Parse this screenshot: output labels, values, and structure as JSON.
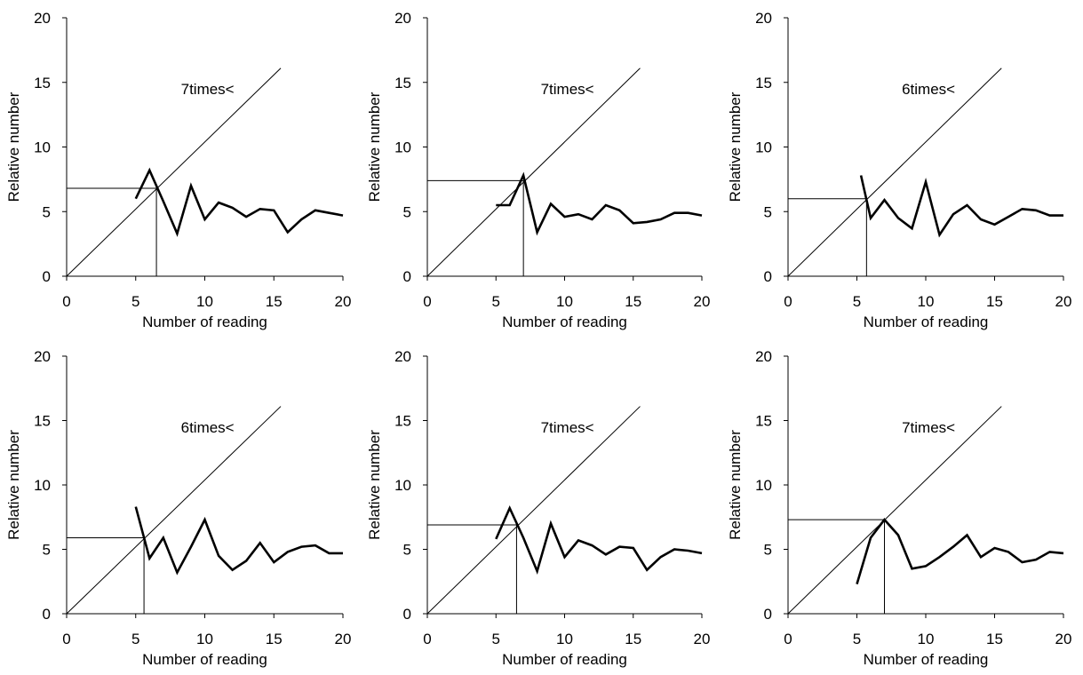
{
  "chart_data": [
    {
      "type": "line",
      "annotation": "7times<",
      "xlabel": "Number of reading",
      "ylabel": "Relative number",
      "xlim": [
        0,
        20
      ],
      "ylim": [
        0,
        20
      ],
      "x_ticks": [
        "0",
        "5",
        "10",
        "15",
        "20"
      ],
      "y_ticks": [
        "0",
        "5",
        "10",
        "15",
        "20"
      ],
      "diagonal_line": {
        "from": [
          0,
          0
        ],
        "to": [
          15.5,
          16.1
        ]
      },
      "intersection": [
        6.5,
        6.8
      ],
      "series": [
        {
          "x": [
            5,
            6,
            7,
            8,
            9,
            10,
            11,
            12,
            13,
            14,
            15,
            16,
            17,
            18,
            19,
            20
          ],
          "values": [
            6.0,
            8.2,
            5.8,
            3.3,
            7.0,
            4.4,
            5.7,
            5.3,
            4.6,
            5.2,
            5.1,
            3.4,
            4.4,
            5.1,
            4.9,
            4.7
          ]
        }
      ]
    },
    {
      "type": "line",
      "annotation": "7times<",
      "xlabel": "Number of reading",
      "ylabel": "Relative number",
      "xlim": [
        0,
        20
      ],
      "ylim": [
        0,
        20
      ],
      "x_ticks": [
        "0",
        "5",
        "10",
        "15",
        "20"
      ],
      "y_ticks": [
        "0",
        "5",
        "10",
        "15",
        "20"
      ],
      "diagonal_line": {
        "from": [
          0,
          0
        ],
        "to": [
          15.5,
          16.1
        ]
      },
      "intersection": [
        7,
        7.4
      ],
      "series": [
        {
          "x": [
            5,
            6,
            7,
            8,
            9,
            10,
            11,
            12,
            13,
            14,
            15,
            16,
            17,
            18,
            19,
            20
          ],
          "values": [
            5.5,
            5.5,
            7.8,
            3.4,
            5.6,
            4.6,
            4.8,
            4.4,
            5.5,
            5.1,
            4.1,
            4.2,
            4.4,
            4.9,
            4.9,
            4.7
          ]
        }
      ]
    },
    {
      "type": "line",
      "annotation": "6times<",
      "xlabel": "Number of reading",
      "ylabel": "Relative number",
      "xlim": [
        0,
        20
      ],
      "ylim": [
        0,
        20
      ],
      "x_ticks": [
        "0",
        "5",
        "10",
        "15",
        "20"
      ],
      "y_ticks": [
        "0",
        "5",
        "10",
        "15",
        "20"
      ],
      "diagonal_line": {
        "from": [
          0,
          0
        ],
        "to": [
          15.5,
          16.1
        ]
      },
      "intersection": [
        5.7,
        6.0
      ],
      "series": [
        {
          "x": [
            5.3,
            6,
            7,
            8,
            9,
            10,
            11,
            12,
            13,
            14,
            15,
            16,
            17,
            18,
            19,
            20
          ],
          "values": [
            7.8,
            4.5,
            5.9,
            4.5,
            3.7,
            7.3,
            3.2,
            4.8,
            5.5,
            4.4,
            4.0,
            4.6,
            5.2,
            5.1,
            4.7,
            4.7
          ]
        }
      ]
    },
    {
      "type": "line",
      "annotation": "6times<",
      "xlabel": "Number of reading",
      "ylabel": "Relative number",
      "xlim": [
        0,
        20
      ],
      "ylim": [
        0,
        20
      ],
      "x_ticks": [
        "0",
        "5",
        "10",
        "15",
        "20"
      ],
      "y_ticks": [
        "0",
        "5",
        "10",
        "15",
        "20"
      ],
      "diagonal_line": {
        "from": [
          0,
          0
        ],
        "to": [
          15.5,
          16.1
        ]
      },
      "intersection": [
        5.6,
        5.9
      ],
      "series": [
        {
          "x": [
            5,
            6,
            7,
            8,
            9,
            10,
            11,
            12,
            13,
            14,
            15,
            16,
            17,
            18,
            19,
            20
          ],
          "values": [
            8.3,
            4.3,
            5.9,
            3.2,
            5.2,
            7.3,
            4.5,
            3.4,
            4.1,
            5.5,
            4.0,
            4.8,
            5.2,
            5.3,
            4.7,
            4.7
          ]
        }
      ]
    },
    {
      "type": "line",
      "annotation": "7times<",
      "xlabel": "Number of reading",
      "ylabel": "Relative number",
      "xlim": [
        0,
        20
      ],
      "ylim": [
        0,
        20
      ],
      "x_ticks": [
        "0",
        "5",
        "10",
        "15",
        "20"
      ],
      "y_ticks": [
        "0",
        "5",
        "10",
        "15",
        "20"
      ],
      "diagonal_line": {
        "from": [
          0,
          0
        ],
        "to": [
          15.5,
          16.1
        ]
      },
      "intersection": [
        6.5,
        6.9
      ],
      "series": [
        {
          "x": [
            5,
            6,
            7,
            8,
            9,
            10,
            11,
            12,
            13,
            14,
            15,
            16,
            17,
            18,
            19,
            20
          ],
          "values": [
            5.8,
            8.2,
            5.9,
            3.3,
            7.0,
            4.4,
            5.7,
            5.3,
            4.6,
            5.2,
            5.1,
            3.4,
            4.4,
            5.0,
            4.9,
            4.7
          ]
        }
      ]
    },
    {
      "type": "line",
      "annotation": "7times<",
      "xlabel": "Number of reading",
      "ylabel": "Relative number",
      "xlim": [
        0,
        20
      ],
      "ylim": [
        0,
        20
      ],
      "x_ticks": [
        "0",
        "5",
        "10",
        "15",
        "20"
      ],
      "y_ticks": [
        "0",
        "5",
        "10",
        "15",
        "20"
      ],
      "diagonal_line": {
        "from": [
          0,
          0
        ],
        "to": [
          15.5,
          16.1
        ]
      },
      "intersection": [
        7,
        7.3
      ],
      "series": [
        {
          "x": [
            5,
            6,
            7,
            8,
            9,
            10,
            11,
            12,
            13,
            14,
            15,
            16,
            17,
            18,
            19,
            20
          ],
          "values": [
            2.3,
            5.9,
            7.3,
            6.1,
            3.5,
            3.7,
            4.4,
            5.2,
            6.1,
            4.4,
            5.1,
            4.8,
            4.0,
            4.2,
            4.8,
            4.7
          ]
        }
      ]
    }
  ]
}
